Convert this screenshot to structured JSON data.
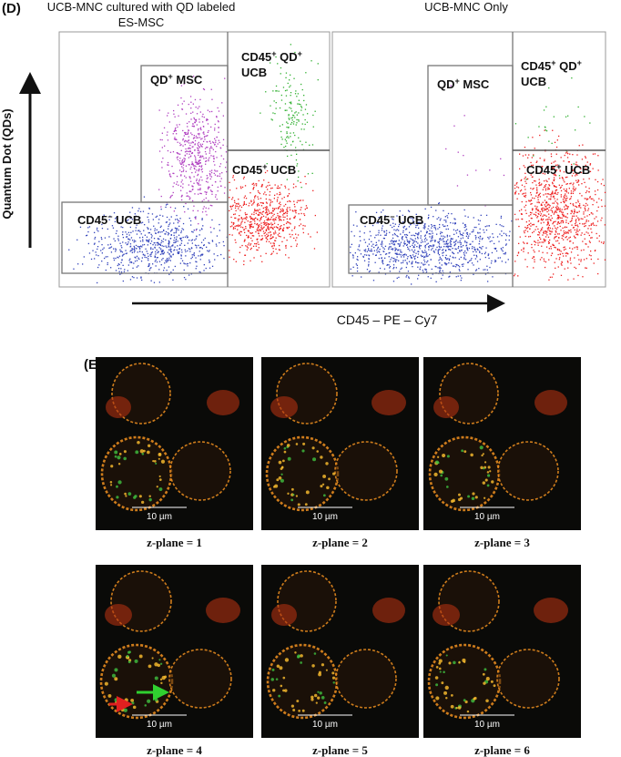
{
  "panel_d": {
    "label": "(D)",
    "y_axis_label": "Quantum Dot (QDs)",
    "x_axis_label": "CD45 – PE – Cy7",
    "plots": [
      {
        "title": [
          "UCB-MNC cultured with QD labeled",
          "ES-MSC"
        ],
        "gates": [
          [
            [
              "QD",
              "+",
              " MSC"
            ]
          ],
          [
            [
              "CD45",
              "+",
              " QD",
              "+"
            ],
            [
              "UCB"
            ]
          ],
          [
            [
              "CD45",
              "+",
              " UCB"
            ]
          ],
          [
            [
              "CD45",
              "−",
              " UCB"
            ]
          ]
        ]
      },
      {
        "title": [
          "UCB-MNC Only"
        ],
        "gates": [
          [
            [
              "QD",
              "+",
              " MSC"
            ]
          ],
          [
            [
              "CD45",
              "+",
              " QD",
              "+"
            ],
            [
              "UCB"
            ]
          ],
          [
            [
              "CD45",
              "+",
              " UCB"
            ]
          ],
          [
            [
              "CD45",
              "−",
              " UCB"
            ]
          ]
        ]
      }
    ]
  },
  "panel_e": {
    "label": "(E)",
    "images": [
      {
        "scale_bar": "10 µm",
        "caption": "z-plane = 1"
      },
      {
        "scale_bar": "10 µm",
        "caption": "z-plane = 2"
      },
      {
        "scale_bar": "10 µm",
        "caption": "z-plane = 3"
      },
      {
        "scale_bar": "10 µm",
        "caption": "z-plane = 4"
      },
      {
        "scale_bar": "10 µm",
        "caption": "z-plane = 5"
      },
      {
        "scale_bar": "10 µm",
        "caption": "z-plane = 6"
      }
    ]
  }
}
